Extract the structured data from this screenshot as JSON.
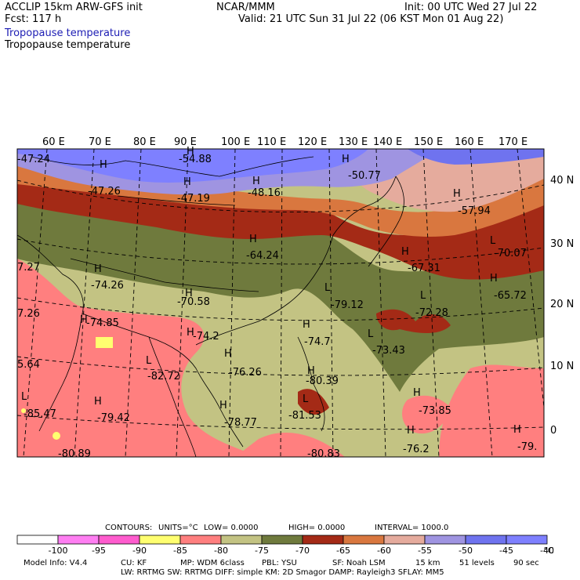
{
  "header": {
    "model": "ACCLIP 15km ARW-GFS init",
    "fcst": "Fcst:  117 h",
    "center": "NCAR/MMM",
    "init": "Init: 00 UTC Wed 27 Jul 22",
    "valid": "Valid: 21 UTC Sun 31 Jul 22 (06 KST Mon 01 Aug 22)",
    "field_blue": "Tropopause temperature",
    "field_black": "Tropopause temperature"
  },
  "lon_labels": [
    "60 E",
    "70 E",
    "80 E",
    "90 E",
    "100 E",
    "110 E",
    "120 E",
    "130 E",
    "140 E",
    "150 E",
    "160 E",
    "170 E"
  ],
  "lat_labels": [
    "40 N",
    "30 N",
    "20 N",
    "10 N",
    "0"
  ],
  "extremes": [
    {
      "kind": "H",
      "value": "-47.24"
    },
    {
      "kind": "H",
      "value": "-54.88"
    },
    {
      "kind": "H",
      "value": "-50.77"
    },
    {
      "kind": "H",
      "value": "-47.26"
    },
    {
      "kind": "H",
      "value": "-47.19"
    },
    {
      "kind": "H",
      "value": "-48.16"
    },
    {
      "kind": "H",
      "value": "-57.94"
    },
    {
      "kind": "H",
      "value": "-64.24"
    },
    {
      "kind": "L",
      "value": "-70.07"
    },
    {
      "kind": "H",
      "value": "-67.31"
    },
    {
      "kind": "H",
      "value": "-65.72"
    },
    {
      "kind": "H",
      "value": "-74.26"
    },
    {
      "kind": "H",
      "value": "-70.58"
    },
    {
      "kind": "L",
      "value": "-79.12"
    },
    {
      "kind": "L",
      "value": "-72.28"
    },
    {
      "kind": "H",
      "value": "-74.85"
    },
    {
      "kind": "H",
      "value": "-74.2"
    },
    {
      "kind": "H",
      "value": "-74.7"
    },
    {
      "kind": "L",
      "value": "-73.43"
    },
    {
      "kind": "L",
      "value": "-82.72"
    },
    {
      "kind": "H",
      "value": "-76.26"
    },
    {
      "kind": "H",
      "value": "-80.39"
    },
    {
      "kind": "L",
      "value": "-85.47"
    },
    {
      "kind": "H",
      "value": "-79.42"
    },
    {
      "kind": "H",
      "value": "-78.77"
    },
    {
      "kind": "L",
      "value": "-81.53"
    },
    {
      "kind": "H",
      "value": "-73.85"
    },
    {
      "kind": "H",
      "value": "-76.2"
    },
    {
      "kind": "H",
      "value": "-79."
    },
    {
      "kind": "",
      "value": "7.27"
    },
    {
      "kind": "",
      "value": "7.26"
    },
    {
      "kind": "",
      "value": "5.64"
    },
    {
      "kind": "",
      "value": "-80.83"
    },
    {
      "kind": "",
      "value": "-80.89"
    }
  ],
  "contours_line": {
    "label": "CONTOURS:",
    "units": "UNITS=°C",
    "low": "LOW=  0.0000",
    "high": "HIGH=  0.0000",
    "interval": "INTERVAL=   1000.0"
  },
  "colorbar": {
    "colors": [
      "#ffffff",
      "#ff7ef2",
      "#ff5cce",
      "#ffff70",
      "#ff7f7f",
      "#c3c383",
      "#6f7a3d",
      "#a42a16",
      "#d9773f",
      "#e5ab9d",
      "#9f94e1",
      "#6f73ef",
      "#7e80ff"
    ],
    "ticks": [
      "-100",
      "-95",
      "-90",
      "-85",
      "-80",
      "-75",
      "-70",
      "-65",
      "-60",
      "-55",
      "-50",
      "-45",
      "-40"
    ],
    "unit": "°C"
  },
  "footer": {
    "line1": [
      "Model Info: V4.4",
      "CU: KF",
      "MP: WDM 6class",
      "PBL: YSU",
      "SF: Noah LSM",
      "15 km",
      "51 levels",
      "90 sec"
    ],
    "line2": "LW: RRTMG   SW: RRTMG   DIFF: simple KM: 2D Smagor DAMP: Rayleigh3  SFLAY: MM5"
  }
}
